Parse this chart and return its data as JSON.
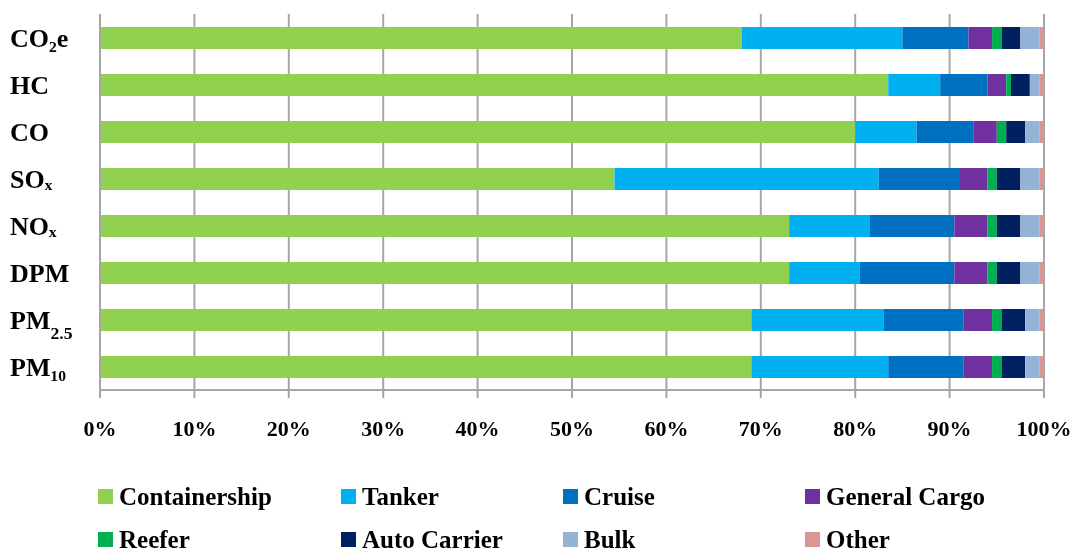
{
  "chart_data": {
    "type": "bar",
    "orientation": "horizontal",
    "stacked": true,
    "categories": [
      "CO₂e",
      "HC",
      "CO",
      "SOₓ",
      "NOₓ",
      "DPM",
      "PM$_{2.5}$",
      "PM₁₀"
    ],
    "series": [
      {
        "name": "Containership",
        "color": "#92d050",
        "values": [
          68,
          83.5,
          80,
          54.5,
          73,
          73,
          69,
          69
        ]
      },
      {
        "name": "Tanker",
        "color": "#00b0f0",
        "values": [
          17,
          5.5,
          6.5,
          28,
          8.5,
          7.5,
          14,
          14.5
        ]
      },
      {
        "name": "Cruise",
        "color": "#0070c0",
        "values": [
          7,
          5,
          6,
          8.5,
          9,
          10,
          8.5,
          8
        ]
      },
      {
        "name": "General Cargo",
        "color": "#7030a0",
        "values": [
          2.5,
          2,
          2.5,
          3,
          3.5,
          3.5,
          3,
          3
        ]
      },
      {
        "name": "Reefer",
        "color": "#00b050",
        "values": [
          1,
          0.5,
          1,
          1,
          1,
          1,
          1,
          1
        ]
      },
      {
        "name": "Auto Carrier",
        "color": "#002060",
        "values": [
          2,
          2,
          2,
          2.5,
          2.5,
          2.5,
          2.5,
          2.5
        ]
      },
      {
        "name": "Bulk",
        "color": "#95b3d7",
        "values": [
          2,
          1,
          1.5,
          2,
          2,
          2,
          1.5,
          1.5
        ]
      },
      {
        "name": "Other",
        "color": "#d99694",
        "values": [
          0.5,
          0.5,
          0.5,
          0.5,
          0.5,
          0.5,
          0.5,
          0.5
        ]
      }
    ],
    "xlim": [
      0,
      100
    ],
    "xticks": [
      {
        "value": 0,
        "label": "0%"
      },
      {
        "value": 10,
        "label": "10%"
      },
      {
        "value": 20,
        "label": "20%"
      },
      {
        "value": 30,
        "label": "30%"
      },
      {
        "value": 40,
        "label": "40%"
      },
      {
        "value": 50,
        "label": "50%"
      },
      {
        "value": 60,
        "label": "60%"
      },
      {
        "value": 70,
        "label": "70%"
      },
      {
        "value": 80,
        "label": "80%"
      },
      {
        "value": 90,
        "label": "90%"
      },
      {
        "value": 100,
        "label": "100%"
      }
    ],
    "grid": "x",
    "legend": "bottom"
  }
}
